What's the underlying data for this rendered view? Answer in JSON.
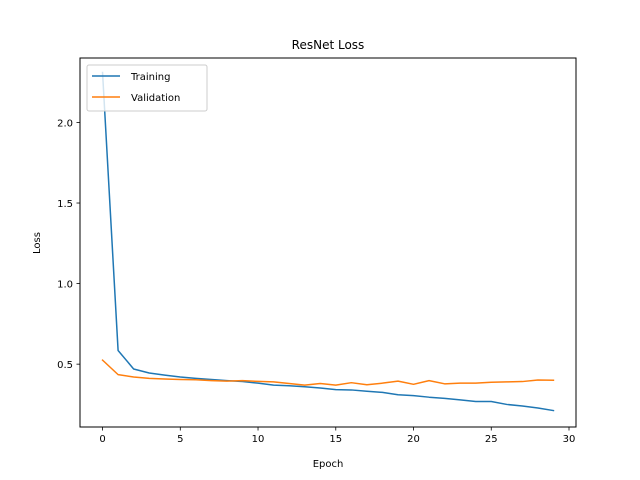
{
  "chart_data": {
    "type": "line",
    "title": "ResNet Loss",
    "xlabel": "Epoch",
    "ylabel": "Loss",
    "xlim": [
      -1.45,
      30.45
    ],
    "ylim": [
      0.11,
      2.4
    ],
    "xticks": [
      0,
      5,
      10,
      15,
      20,
      25,
      30
    ],
    "yticks": [
      0.5,
      1.0,
      1.5,
      2.0
    ],
    "xtick_labels": [
      "0",
      "5",
      "10",
      "15",
      "20",
      "25",
      "30"
    ],
    "ytick_labels": [
      "0.5",
      "1.0",
      "1.5",
      "2.0"
    ],
    "legend_position": "top-left",
    "grid": false,
    "x": [
      0,
      1,
      2,
      3,
      4,
      5,
      6,
      7,
      8,
      9,
      10,
      11,
      12,
      13,
      14,
      15,
      16,
      17,
      18,
      19,
      20,
      21,
      22,
      23,
      24,
      25,
      26,
      27,
      28,
      29
    ],
    "series": [
      {
        "name": "Training",
        "color": "#1f77b4",
        "values": [
          2.31,
          0.585,
          0.47,
          0.445,
          0.432,
          0.42,
          0.412,
          0.405,
          0.398,
          0.392,
          0.382,
          0.37,
          0.366,
          0.36,
          0.352,
          0.342,
          0.34,
          0.332,
          0.325,
          0.31,
          0.305,
          0.295,
          0.288,
          0.278,
          0.268,
          0.268,
          0.25,
          0.24,
          0.228,
          0.212
        ]
      },
      {
        "name": "Validation",
        "color": "#ff7f0e",
        "values": [
          0.525,
          0.435,
          0.42,
          0.412,
          0.408,
          0.405,
          0.403,
          0.398,
          0.395,
          0.398,
          0.393,
          0.39,
          0.38,
          0.37,
          0.38,
          0.37,
          0.385,
          0.372,
          0.382,
          0.395,
          0.375,
          0.398,
          0.378,
          0.382,
          0.382,
          0.388,
          0.39,
          0.392,
          0.402,
          0.4
        ]
      }
    ]
  }
}
